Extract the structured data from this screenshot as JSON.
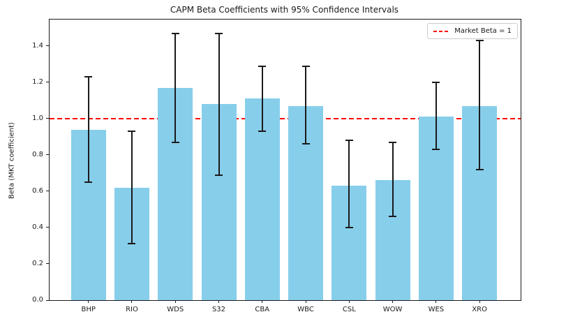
{
  "chart_data": {
    "type": "bar",
    "title": "CAPM Beta Coefficients with 95% Confidence Intervals",
    "xlabel": "",
    "ylabel": "Beta (MKT coefficient)",
    "categories": [
      "BHP",
      "RIO",
      "WDS",
      "S32",
      "CBA",
      "WBC",
      "CSL",
      "WOW",
      "WES",
      "XRO"
    ],
    "series": [
      {
        "name": "Beta (MKT coefficient)",
        "values": [
          0.94,
          0.62,
          1.17,
          1.08,
          1.11,
          1.07,
          0.63,
          0.66,
          1.01,
          1.07
        ]
      }
    ],
    "ci_lower": [
      0.65,
      0.31,
      0.87,
      0.69,
      0.93,
      0.86,
      0.4,
      0.46,
      0.83,
      0.72
    ],
    "ci_upper": [
      1.23,
      0.93,
      1.47,
      1.47,
      1.29,
      1.29,
      0.88,
      0.87,
      1.2,
      1.43
    ],
    "reference_line": {
      "value": 1.0,
      "label": "Market Beta = 1",
      "style": "dashed",
      "color": "#ff0000"
    },
    "ylim": [
      0,
      1.546
    ],
    "y_ticks": [
      0.0,
      0.2,
      0.4,
      0.6,
      0.8,
      1.0,
      1.2,
      1.4
    ],
    "y_tick_labels": [
      "0.0",
      "0.2",
      "0.4",
      "0.6",
      "0.8",
      "1.0",
      "1.2",
      "1.4"
    ],
    "bar_color": "#87CEEB",
    "error_bar_color": "#1a1a1a",
    "grid": false,
    "legend_position": "upper right"
  }
}
